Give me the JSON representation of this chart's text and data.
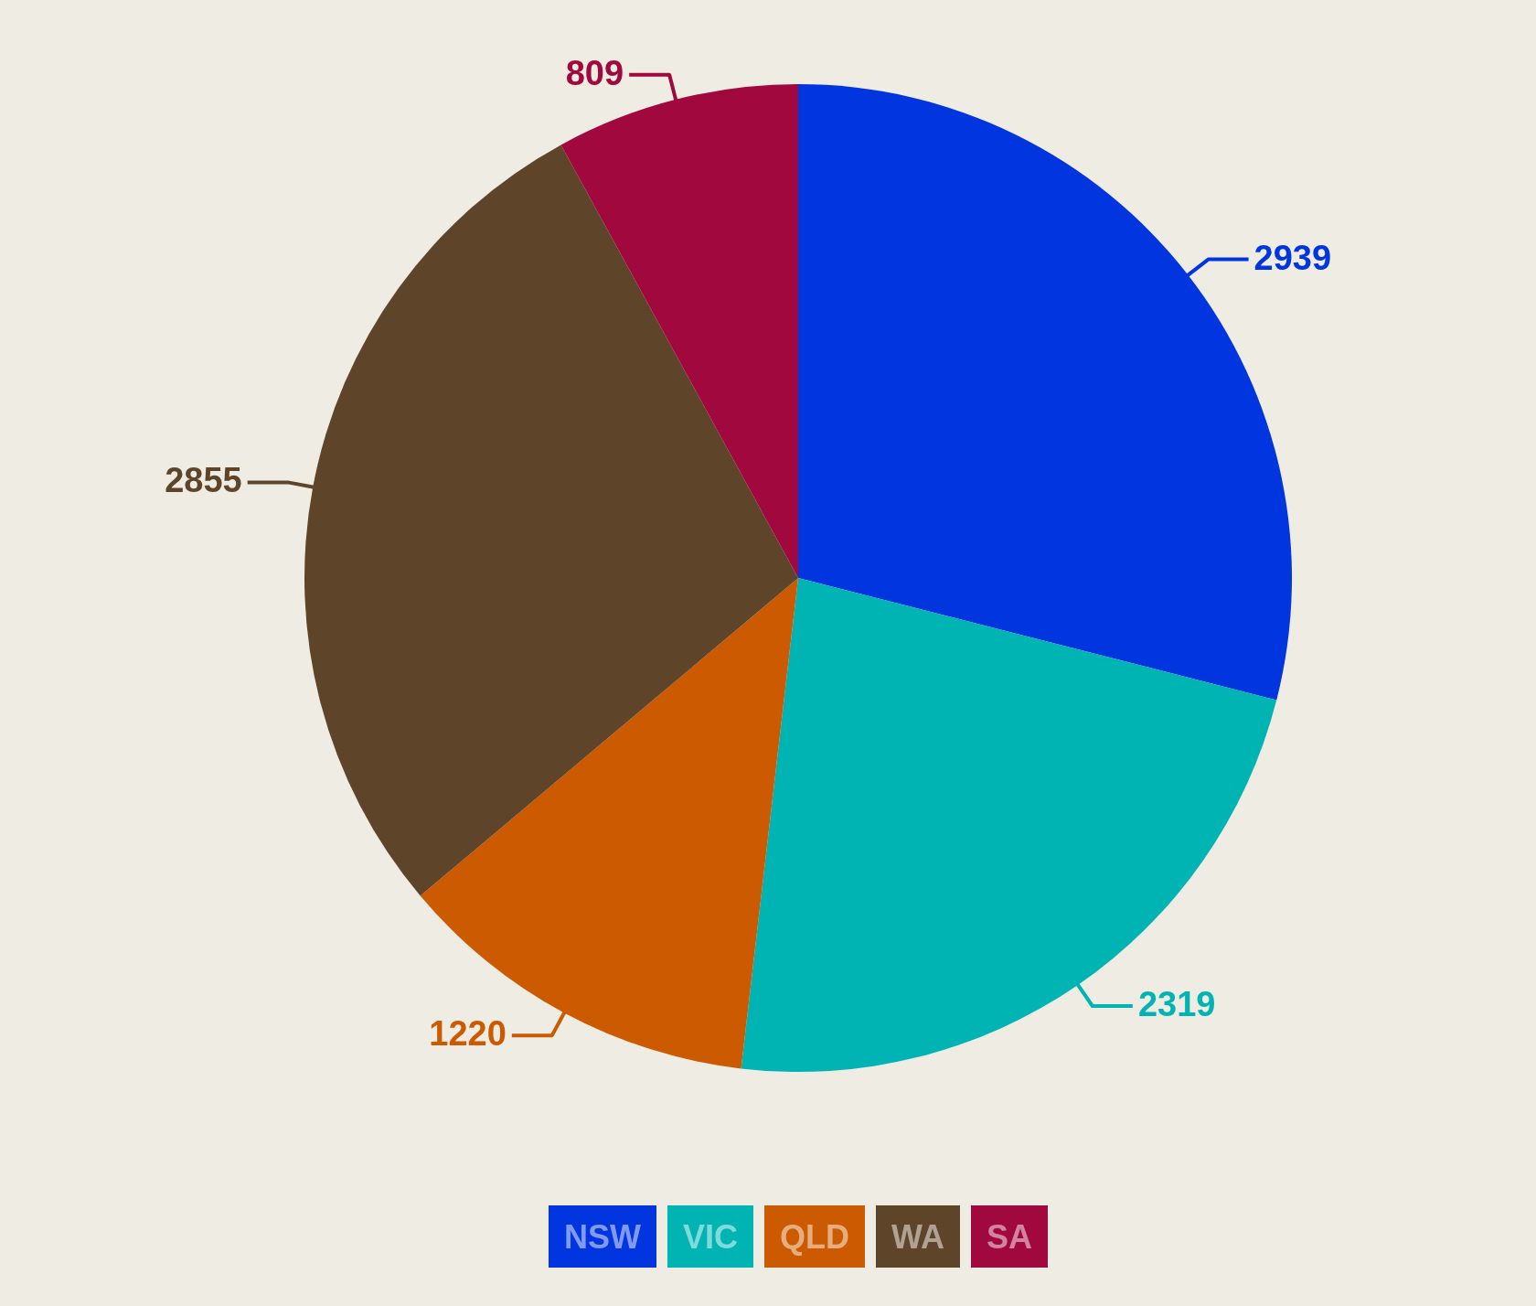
{
  "chart_data": {
    "type": "pie",
    "categories": [
      "NSW",
      "VIC",
      "QLD",
      "WA",
      "SA"
    ],
    "values": [
      2939,
      2319,
      1220,
      2855,
      809
    ],
    "colors": [
      "#0035e0",
      "#00b4b4",
      "#cc5a00",
      "#5e4428",
      "#a0083e"
    ],
    "data_labels": true,
    "legend": "bottom"
  }
}
